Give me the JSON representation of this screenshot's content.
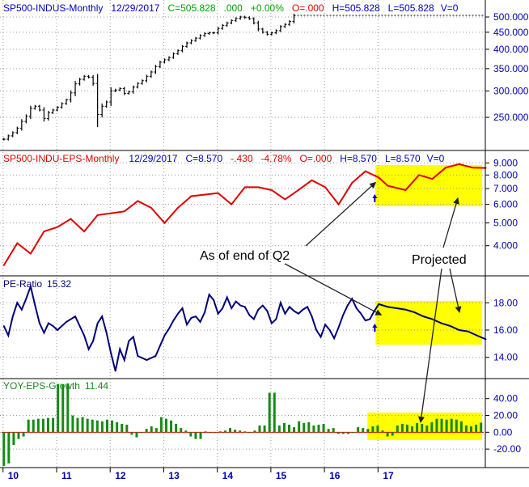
{
  "chart_data": [
    {
      "type": "ohlc",
      "title": {
        "symbol": "SP500-INDUS-Monthly",
        "date": "12/29/2017",
        "close": "C=505.828",
        "change": ".000",
        "change_pct": "+0.00%",
        "open": "O=.000",
        "high": "H=505.828",
        "low": "L=505.828",
        "volume": "V=0"
      },
      "ylim": [
        200,
        520
      ],
      "y_scale": "log",
      "yticks": [
        "500.000",
        "450.000",
        "400.000",
        "350.000",
        "300.000",
        "250.000"
      ],
      "ytick_values": [
        500,
        450,
        400,
        350,
        300,
        250
      ],
      "ohlc_mid_values": [
        215,
        220,
        225,
        232,
        243,
        252,
        266,
        270,
        263,
        248,
        258,
        263,
        268,
        275,
        282,
        296,
        315,
        325,
        332,
        330,
        316,
        255,
        270,
        278,
        300,
        302,
        305,
        295,
        298,
        308,
        316,
        322,
        332,
        342,
        355,
        366,
        372,
        378,
        388,
        396,
        408,
        418,
        425,
        432,
        440,
        446,
        448,
        448,
        462,
        472,
        480,
        488,
        495,
        500,
        498,
        494,
        480,
        460,
        450,
        444,
        448,
        455,
        468,
        475,
        485,
        505
      ],
      "last_value": 505.828
    },
    {
      "type": "line",
      "title": {
        "symbol": "SP500-INDU-EPS-Monthly",
        "date": "12/29/2017",
        "close": "C=8.570",
        "change": "-.430",
        "change_pct": "-4.78%",
        "open": "O=.000",
        "high": "H=8.570",
        "low": "L=8.570",
        "volume": "V=0"
      },
      "ylim": [
        3,
        9.4
      ],
      "y_scale": "log",
      "yticks": [
        "9.000",
        "8.000",
        "7.000",
        "6.000",
        "5.000",
        "4.000"
      ],
      "ytick_values": [
        9,
        8,
        7,
        6,
        5,
        4
      ],
      "x": [
        0,
        3,
        6,
        9,
        12,
        15,
        18,
        21,
        24,
        27,
        30,
        33,
        36,
        39,
        42,
        45,
        48,
        51,
        54,
        57,
        60,
        63,
        66,
        69,
        72,
        75,
        78,
        81,
        84,
        86,
        90,
        93,
        96,
        99,
        102,
        105,
        108
      ],
      "values": [
        3.3,
        4.1,
        3.7,
        4.6,
        4.8,
        5.2,
        4.6,
        5.4,
        5.5,
        5.6,
        6.2,
        5.8,
        5.0,
        5.8,
        6.5,
        6.6,
        6.7,
        6.0,
        7.1,
        7.1,
        6.9,
        6.3,
        6.9,
        7.6,
        7.1,
        6.0,
        7.4,
        8.3,
        7.8,
        7.2,
        6.9,
        8.0,
        7.7,
        8.6,
        8.9,
        8.6,
        8.57
      ],
      "projected_from_index": 28,
      "series": [
        {
          "name": "SP500-INDU-EPS-Monthly"
        }
      ]
    },
    {
      "type": "line",
      "title": {
        "label": "PE-Ratio",
        "value": "15.32"
      },
      "ylim": [
        12.5,
        19.5
      ],
      "yticks": [
        "18.00",
        "16.00",
        "14.00"
      ],
      "ytick_values": [
        18,
        16,
        14
      ],
      "x": [
        0,
        1,
        2,
        3,
        4,
        5,
        6,
        7,
        8,
        9,
        10,
        11,
        12,
        14,
        16,
        18,
        19,
        20,
        21,
        22,
        23,
        24,
        25,
        26,
        27,
        28,
        29,
        30,
        32,
        34,
        36,
        37,
        38,
        39,
        40,
        41,
        42,
        43,
        44,
        45,
        46,
        47,
        48,
        49,
        50,
        51,
        52,
        53,
        54,
        55,
        56,
        57,
        58,
        59,
        60,
        61,
        62,
        63,
        64,
        65,
        66,
        67,
        68,
        69,
        70,
        71,
        72,
        73,
        74,
        75,
        76,
        77,
        78,
        79,
        80,
        81,
        82,
        83,
        84,
        86,
        88,
        90,
        92,
        94,
        96,
        98,
        100,
        102,
        104,
        106,
        108
      ],
      "values": [
        16.3,
        15.6,
        17.0,
        18.0,
        17.5,
        18.3,
        19.2,
        17.8,
        16.5,
        15.8,
        16.5,
        16.3,
        16.0,
        16.6,
        17.0,
        15.6,
        14.6,
        15.2,
        16.5,
        17.0,
        15.8,
        14.3,
        13.0,
        14.6,
        13.8,
        15.2,
        15.5,
        14.1,
        13.8,
        14.1,
        15.6,
        16.1,
        16.7,
        17.2,
        17.6,
        16.4,
        16.9,
        17.0,
        16.6,
        17.3,
        18.6,
        18.2,
        17.2,
        17.6,
        18.4,
        17.6,
        18.1,
        17.8,
        17.7,
        17.1,
        16.8,
        17.5,
        17.8,
        17.4,
        16.5,
        16.8,
        18.0,
        17.2,
        17.7,
        17.4,
        17.2,
        17.5,
        17.7,
        17.0,
        16.0,
        15.5,
        16.4,
        16.0,
        15.4,
        16.2,
        17.1,
        17.8,
        18.3,
        17.6,
        17.2,
        16.7,
        16.8,
        17.4,
        17.9,
        17.7,
        17.6,
        17.5,
        17.3,
        17.0,
        16.8,
        16.5,
        16.3,
        16.0,
        15.9,
        15.6,
        15.32
      ],
      "projected_from_index": 79,
      "series": [
        {
          "name": "PE-Ratio"
        }
      ]
    },
    {
      "type": "bar",
      "title": {
        "label": "YOY-EPS-Growth",
        "value": "11.44"
      },
      "ylim": [
        -42,
        58
      ],
      "yticks": [
        "40.00",
        "20.00",
        "0.00",
        "-20.00"
      ],
      "ytick_values": [
        40,
        20,
        0,
        -20
      ],
      "values": [
        -40,
        -37,
        -15,
        -8,
        -5,
        15,
        15,
        16,
        16,
        17,
        17,
        57,
        57,
        58,
        20,
        17,
        18,
        16,
        15,
        14,
        13,
        15,
        14,
        12,
        10,
        9,
        -3,
        -6,
        0,
        4,
        7,
        5,
        18,
        16,
        14,
        10,
        5,
        2,
        -5,
        -8,
        -8,
        1,
        0,
        0,
        1,
        2,
        5,
        3,
        2,
        1,
        0,
        2,
        8,
        8,
        47,
        47,
        8,
        11,
        9,
        6,
        13,
        11,
        12,
        8,
        9,
        10,
        4,
        5,
        -2,
        -2,
        -2,
        0,
        6,
        5,
        4,
        7,
        8,
        2,
        -5,
        -4,
        8,
        10,
        9,
        7,
        11,
        10,
        8,
        12,
        16,
        16,
        15,
        16,
        15,
        13,
        8,
        7,
        9,
        11.44
      ],
      "projected_from_index": 80,
      "series": [
        {
          "name": "YOY-EPS-Growth"
        }
      ]
    }
  ],
  "x_axis": {
    "labels": [
      "10",
      "11",
      "12",
      "13",
      "14",
      "15",
      "16",
      "17"
    ],
    "label_months": [
      0,
      12,
      24,
      36,
      48,
      60,
      72,
      84
    ],
    "total_months": 108
  },
  "annotations": {
    "as_of": "As of end of Q2",
    "projected": "Projected"
  },
  "colors": {
    "price": "#000000",
    "eps": "#e00000",
    "pe": "#00007a",
    "growth": "#168a16",
    "highlight": "#ffff00",
    "axis_label": "#0000b0",
    "title_blue": "#0000c0",
    "title_green": "#00a000",
    "title_red": "#e00000"
  }
}
